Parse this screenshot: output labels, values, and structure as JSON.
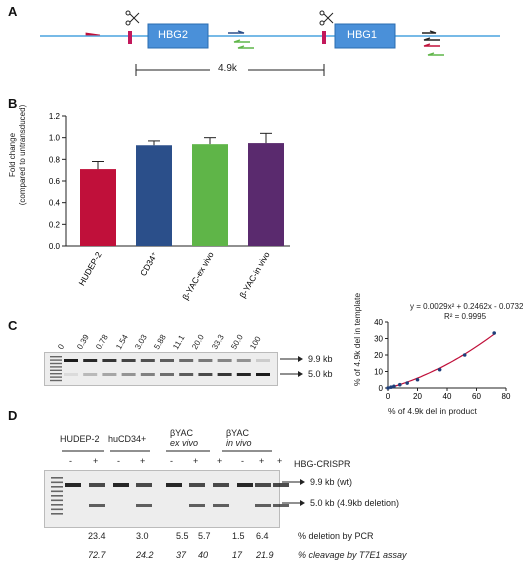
{
  "panels": {
    "a": {
      "letter": "A",
      "gene1": "HBG2",
      "gene2": "HBG1",
      "deletion_label": "4.9k"
    },
    "b": {
      "letter": "B",
      "chart_data": {
        "type": "bar",
        "ylabel_line1": "Fold change",
        "ylabel_line2": "(compared to untransduced)",
        "ylim": [
          0,
          1.2
        ],
        "yticks": [
          "0.0",
          "0.2",
          "0.4",
          "0.6",
          "0.8",
          "1.0",
          "1.2"
        ],
        "categories": [
          "HUDEP-2",
          "CD34⁺",
          "β-YAC-ex vivo",
          "β-YAC-in vivo"
        ],
        "values": [
          0.71,
          0.93,
          0.94,
          0.95
        ],
        "errors": [
          0.07,
          0.04,
          0.06,
          0.09
        ],
        "colors": [
          "#c0103a",
          "#2b4f8a",
          "#5fb548",
          "#5a2a6e"
        ]
      }
    },
    "c": {
      "letter": "C",
      "lane_labels": [
        "0",
        "0.39",
        "0.78",
        "1.54",
        "3.03",
        "5.88",
        "11.1",
        "20.0",
        "33.3",
        "50.0",
        "100"
      ],
      "band_top": "9.9 kb",
      "band_bottom": "5.0 kb",
      "chart_data": {
        "type": "scatter",
        "xlabel": "% of 4.9k del in product",
        "ylabel": "% of 4.9k del in template",
        "xlim": [
          0,
          80
        ],
        "ylim": [
          0,
          40
        ],
        "xticks": [
          "0",
          "20",
          "40",
          "60",
          "80"
        ],
        "yticks": [
          "0",
          "10",
          "20",
          "30",
          "40"
        ],
        "x": [
          0,
          2,
          4,
          8,
          13,
          20,
          35,
          52,
          72
        ],
        "y": [
          0,
          0.5,
          1,
          2,
          3,
          5,
          11.1,
          20,
          33.3
        ],
        "equation": "y = 0.0029x² + 0.2462x - 0.0732",
        "r_squared": "R² = 0.9995"
      }
    },
    "d": {
      "letter": "D",
      "groups": [
        {
          "line1": "HUDEP-2",
          "line2": ""
        },
        {
          "line1": "huCD34+",
          "line2": ""
        },
        {
          "line1": "βYAC",
          "line2": "ex vivo"
        },
        {
          "line1": "βYAC",
          "line2": "in vivo"
        }
      ],
      "signs": [
        "-",
        "+",
        "-",
        "+",
        "-",
        "+",
        "+",
        "-",
        "+",
        "+"
      ],
      "crispr_label": "HBG-CRISPR",
      "band_top": "9.9 kb (wt)",
      "band_bottom": "5.0 kb (4.9kb deletion)",
      "pcr_values": [
        "23.4",
        "3.0",
        "5.5",
        "5.7",
        "1.5",
        "6.4"
      ],
      "pcr_label": "% deletion by PCR",
      "t7_values": [
        "72.7",
        "24.2",
        "37",
        "40",
        "17",
        "21.9"
      ],
      "t7_label": "% cleavage by T7E1 assay"
    }
  }
}
